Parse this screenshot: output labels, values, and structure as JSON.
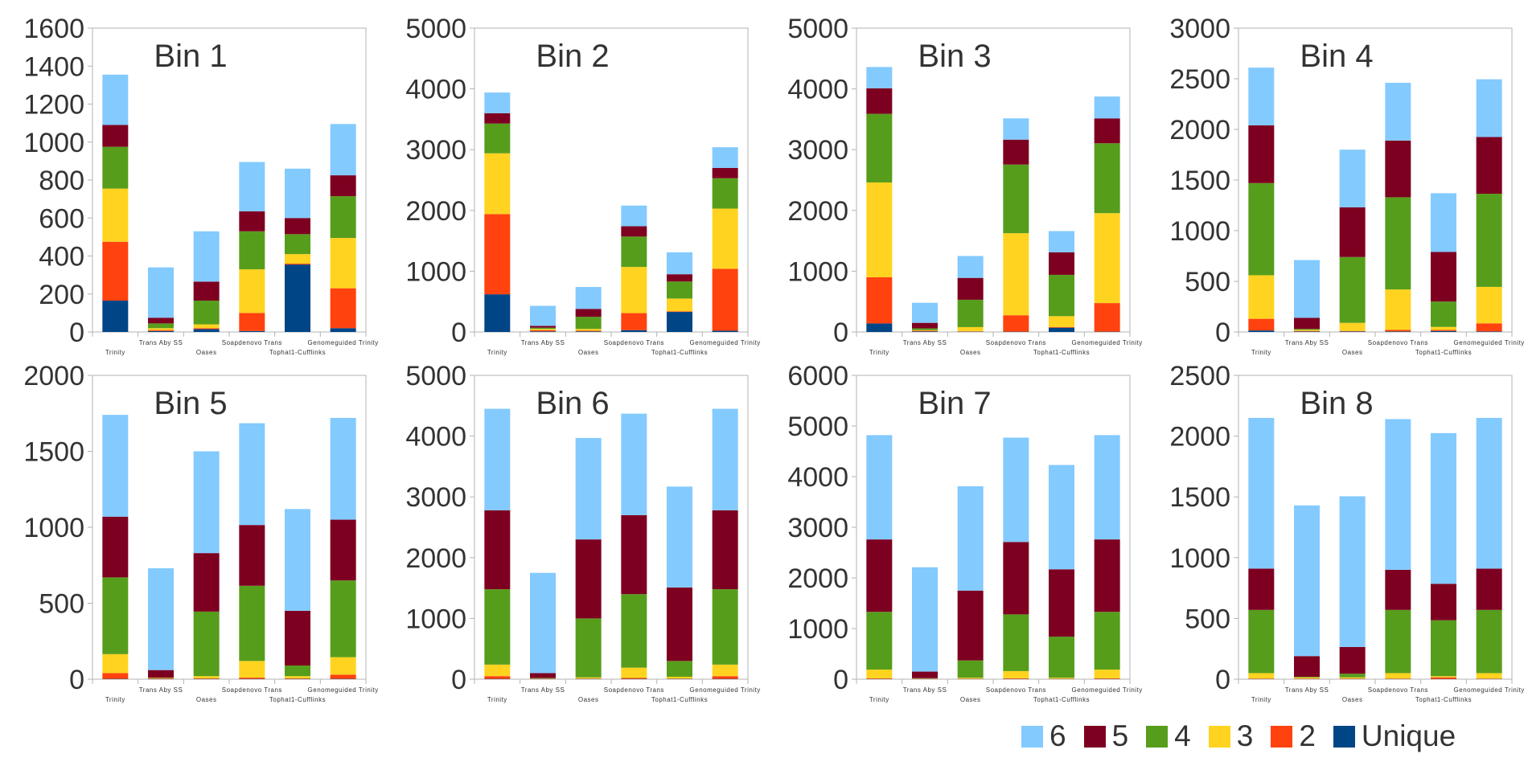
{
  "chart_data": [
    {
      "type": "bar",
      "stacked": true,
      "title": "Bin 1",
      "categories": [
        "Trinity",
        "Trans Aby SS",
        "Oases",
        "Soapdenovo Trans",
        "Tophat1-Cufflinks",
        "Genomeguided Trinity"
      ],
      "ylim": [
        0,
        1600
      ],
      "yticks": [
        0,
        200,
        400,
        600,
        800,
        1000,
        1200,
        1400,
        1600
      ],
      "series": [
        {
          "name": "Unique",
          "values": [
            165,
            5,
            15,
            5,
            355,
            20
          ]
        },
        {
          "name": "2",
          "values": [
            310,
            5,
            5,
            95,
            5,
            210
          ]
        },
        {
          "name": "3",
          "values": [
            280,
            10,
            20,
            230,
            50,
            265
          ]
        },
        {
          "name": "4",
          "values": [
            220,
            25,
            125,
            200,
            105,
            220
          ]
        },
        {
          "name": "5",
          "values": [
            115,
            30,
            100,
            105,
            85,
            110
          ]
        },
        {
          "name": "6",
          "values": [
            265,
            265,
            265,
            260,
            260,
            270
          ]
        }
      ]
    },
    {
      "type": "bar",
      "stacked": true,
      "title": "Bin 2",
      "categories": [
        "Trinity",
        "Trans Aby SS",
        "Oases",
        "Soapdenovo Trans",
        "Tophat1-Cufflinks",
        "Genomeguided Trinity"
      ],
      "ylim": [
        0,
        5000
      ],
      "yticks": [
        0,
        1000,
        2000,
        3000,
        4000,
        5000
      ],
      "series": [
        {
          "name": "Unique",
          "values": [
            620,
            10,
            10,
            30,
            330,
            20
          ]
        },
        {
          "name": "2",
          "values": [
            1320,
            20,
            10,
            280,
            10,
            1020
          ]
        },
        {
          "name": "3",
          "values": [
            1000,
            20,
            30,
            760,
            210,
            990
          ]
        },
        {
          "name": "4",
          "values": [
            490,
            20,
            200,
            500,
            280,
            500
          ]
        },
        {
          "name": "5",
          "values": [
            170,
            30,
            130,
            170,
            120,
            170
          ]
        },
        {
          "name": "6",
          "values": [
            340,
            330,
            360,
            340,
            360,
            340
          ]
        }
      ]
    },
    {
      "type": "bar",
      "stacked": true,
      "title": "Bin 3",
      "categories": [
        "Trinity",
        "Trans Aby SS",
        "Oases",
        "Soapdenovo Trans",
        "Tophat1-Cufflinks",
        "Genomeguided Trinity"
      ],
      "ylim": [
        0,
        5000
      ],
      "yticks": [
        0,
        1000,
        2000,
        3000,
        4000,
        5000
      ],
      "series": [
        {
          "name": "Unique",
          "values": [
            140,
            10,
            5,
            5,
            70,
            5
          ]
        },
        {
          "name": "2",
          "values": [
            760,
            10,
            5,
            270,
            10,
            470
          ]
        },
        {
          "name": "3",
          "values": [
            1560,
            10,
            70,
            1350,
            180,
            1480
          ]
        },
        {
          "name": "4",
          "values": [
            1130,
            30,
            450,
            1130,
            680,
            1150
          ]
        },
        {
          "name": "5",
          "values": [
            420,
            90,
            360,
            410,
            370,
            410
          ]
        },
        {
          "name": "6",
          "values": [
            350,
            330,
            360,
            350,
            350,
            360
          ]
        }
      ]
    },
    {
      "type": "bar",
      "stacked": true,
      "title": "Bin 4",
      "categories": [
        "Trinity",
        "Trans Aby SS",
        "Oases",
        "Soapdenovo Trans",
        "Tophat1-Cufflinks",
        "Genomeguided Trinity"
      ],
      "ylim": [
        0,
        3000
      ],
      "yticks": [
        0,
        500,
        1000,
        1500,
        2000,
        2500,
        3000
      ],
      "series": [
        {
          "name": "Unique",
          "values": [
            15,
            5,
            5,
            5,
            10,
            5
          ]
        },
        {
          "name": "2",
          "values": [
            115,
            5,
            5,
            15,
            10,
            80
          ]
        },
        {
          "name": "3",
          "values": [
            430,
            10,
            80,
            400,
            30,
            360
          ]
        },
        {
          "name": "4",
          "values": [
            910,
            10,
            650,
            910,
            250,
            920
          ]
        },
        {
          "name": "5",
          "values": [
            570,
            110,
            490,
            560,
            490,
            560
          ]
        },
        {
          "name": "6",
          "values": [
            570,
            570,
            570,
            570,
            580,
            570
          ]
        }
      ]
    },
    {
      "type": "bar",
      "stacked": true,
      "title": "Bin 5",
      "categories": [
        "Trinity",
        "Trans Aby SS",
        "Oases",
        "Soapdenovo Trans",
        "Tophat1-Cufflinks",
        "Genomeguided Trinity"
      ],
      "ylim": [
        0,
        2000
      ],
      "yticks": [
        0,
        500,
        1000,
        1500,
        2000
      ],
      "series": [
        {
          "name": "Unique",
          "values": [
            2,
            2,
            2,
            2,
            2,
            2
          ]
        },
        {
          "name": "2",
          "values": [
            38,
            3,
            3,
            8,
            3,
            28
          ]
        },
        {
          "name": "3",
          "values": [
            125,
            3,
            15,
            110,
            15,
            115
          ]
        },
        {
          "name": "4",
          "values": [
            505,
            2,
            425,
            495,
            70,
            505
          ]
        },
        {
          "name": "5",
          "values": [
            400,
            50,
            385,
            400,
            360,
            400
          ]
        },
        {
          "name": "6",
          "values": [
            670,
            670,
            670,
            670,
            670,
            670
          ]
        }
      ]
    },
    {
      "type": "bar",
      "stacked": true,
      "title": "Bin 6",
      "categories": [
        "Trinity",
        "Trans Aby SS",
        "Oases",
        "Soapdenovo Trans",
        "Tophat1-Cufflinks",
        "Genomeguided Trinity"
      ],
      "ylim": [
        0,
        5000
      ],
      "yticks": [
        0,
        1000,
        2000,
        3000,
        4000,
        5000
      ],
      "series": [
        {
          "name": "Unique",
          "values": [
            5,
            5,
            5,
            5,
            5,
            5
          ]
        },
        {
          "name": "2",
          "values": [
            45,
            5,
            5,
            15,
            5,
            45
          ]
        },
        {
          "name": "3",
          "values": [
            190,
            5,
            20,
            170,
            30,
            190
          ]
        },
        {
          "name": "4",
          "values": [
            1240,
            5,
            970,
            1210,
            260,
            1240
          ]
        },
        {
          "name": "5",
          "values": [
            1300,
            80,
            1300,
            1300,
            1210,
            1300
          ]
        },
        {
          "name": "6",
          "values": [
            1670,
            1650,
            1670,
            1670,
            1660,
            1670
          ]
        }
      ]
    },
    {
      "type": "bar",
      "stacked": true,
      "title": "Bin 7",
      "categories": [
        "Trinity",
        "Trans Aby SS",
        "Oases",
        "Soapdenovo Trans",
        "Tophat1-Cufflinks",
        "Genomeguided Trinity"
      ],
      "ylim": [
        0,
        6000
      ],
      "yticks": [
        0,
        1000,
        2000,
        3000,
        4000,
        5000,
        6000
      ],
      "series": [
        {
          "name": "Unique",
          "values": [
            5,
            5,
            5,
            5,
            5,
            5
          ]
        },
        {
          "name": "2",
          "values": [
            10,
            5,
            5,
            10,
            5,
            10
          ]
        },
        {
          "name": "3",
          "values": [
            175,
            5,
            20,
            145,
            20,
            175
          ]
        },
        {
          "name": "4",
          "values": [
            1140,
            5,
            340,
            1120,
            810,
            1140
          ]
        },
        {
          "name": "5",
          "values": [
            1430,
            130,
            1380,
            1430,
            1330,
            1430
          ]
        },
        {
          "name": "6",
          "values": [
            2060,
            2060,
            2060,
            2060,
            2060,
            2060
          ]
        }
      ]
    },
    {
      "type": "bar",
      "stacked": true,
      "title": "Bin 8",
      "categories": [
        "Trinity",
        "Trans Aby SS",
        "Oases",
        "Soapdenovo Trans",
        "Tophat1-Cufflinks",
        "Genomeguided Trinity"
      ],
      "ylim": [
        0,
        2500
      ],
      "yticks": [
        0,
        500,
        1000,
        1500,
        2000,
        2500
      ],
      "series": [
        {
          "name": "Unique",
          "values": [
            2,
            2,
            2,
            2,
            2,
            2
          ]
        },
        {
          "name": "2",
          "values": [
            3,
            3,
            3,
            3,
            13,
            3
          ]
        },
        {
          "name": "3",
          "values": [
            45,
            10,
            10,
            45,
            10,
            45
          ]
        },
        {
          "name": "4",
          "values": [
            520,
            5,
            30,
            520,
            460,
            520
          ]
        },
        {
          "name": "5",
          "values": [
            340,
            170,
            220,
            330,
            300,
            340
          ]
        },
        {
          "name": "6",
          "values": [
            1240,
            1240,
            1240,
            1240,
            1240,
            1240
          ]
        }
      ]
    }
  ],
  "series_colors": {
    "Unique": "#004586",
    "2": "#ff420e",
    "3": "#ffd320",
    "4": "#579d1c",
    "5": "#7e0021",
    "6": "#83caff"
  },
  "legend": [
    {
      "name": "6",
      "color": "#83caff"
    },
    {
      "name": "5",
      "color": "#7e0021"
    },
    {
      "name": "4",
      "color": "#579d1c"
    },
    {
      "name": "3",
      "color": "#ffd320"
    },
    {
      "name": "2",
      "color": "#ff420e"
    },
    {
      "name": "Unique",
      "color": "#004586"
    }
  ]
}
